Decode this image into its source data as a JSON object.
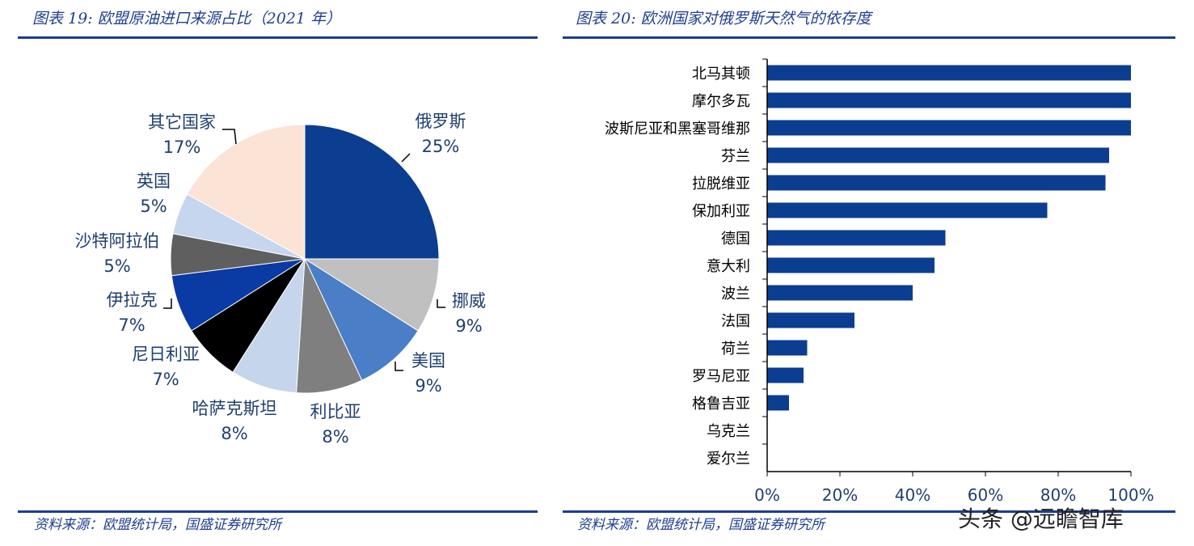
{
  "left": {
    "title": "图表 19:  欧盟原油进口来源占比（2021 年）",
    "source": "资料来源：欧盟统计局，国盛证券研究所"
  },
  "right": {
    "title": "图表 20:  欧洲国家对俄罗斯天然气的依存度",
    "source": "资料来源：欧盟统计局，国盛证券研究所"
  },
  "watermark": "头条 @远瞻智库",
  "chart_data": [
    {
      "type": "pie",
      "title": "图表 19:  欧盟原油进口来源占比（2021 年）",
      "slices": [
        {
          "label": "俄罗斯",
          "value": 25,
          "pct_label": "25%",
          "color": "#0b3d91"
        },
        {
          "label": "挪威",
          "value": 9,
          "pct_label": "9%",
          "color": "#c0c0c0"
        },
        {
          "label": "美国",
          "value": 9,
          "pct_label": "9%",
          "color": "#4a7ec7"
        },
        {
          "label": "利比亚",
          "value": 8,
          "pct_label": "8%",
          "color": "#7f7f7f"
        },
        {
          "label": "哈萨克斯坦",
          "value": 8,
          "pct_label": "8%",
          "color": "#c5d5ec"
        },
        {
          "label": "尼日利亚",
          "value": 7,
          "pct_label": "7%",
          "color": "#000000"
        },
        {
          "label": "伊拉克",
          "value": 7,
          "pct_label": "7%",
          "color": "#0a3aa3"
        },
        {
          "label": "沙特阿拉伯",
          "value": 5,
          "pct_label": "5%",
          "color": "#5f5f5f"
        },
        {
          "label": "英国",
          "value": 5,
          "pct_label": "5%",
          "color": "#c6d6ee"
        },
        {
          "label": "其它国家",
          "value": 17,
          "pct_label": "17%",
          "color": "#fbe3d6"
        }
      ]
    },
    {
      "type": "bar",
      "orientation": "horizontal",
      "title": "图表 20:  欧洲国家对俄罗斯天然气的依存度",
      "categories": [
        "北马其顿",
        "摩尔多瓦",
        "波斯尼亚和黑塞哥维那",
        "芬兰",
        "拉脱维亚",
        "保加利亚",
        "德国",
        "意大利",
        "波兰",
        "法国",
        "荷兰",
        "罗马尼亚",
        "格鲁吉亚",
        "乌克兰",
        "爱尔兰"
      ],
      "values": [
        100,
        100,
        100,
        94,
        93,
        77,
        49,
        46,
        40,
        24,
        11,
        10,
        6,
        0,
        0
      ],
      "xlim": [
        0,
        100
      ],
      "xticks": [
        "0%",
        "20%",
        "40%",
        "60%",
        "80%",
        "100%"
      ],
      "bar_color": "#0b3d91",
      "grid": false
    }
  ]
}
